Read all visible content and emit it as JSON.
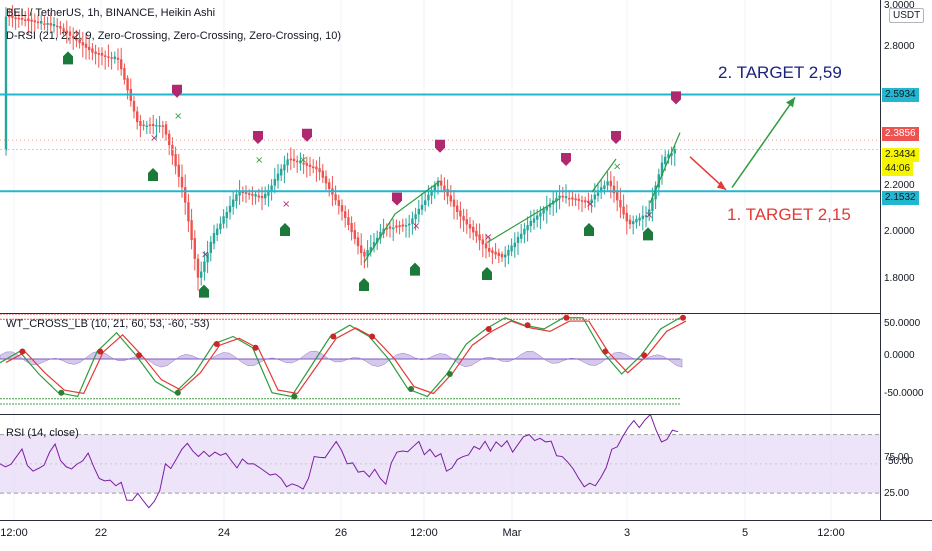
{
  "main": {
    "legend_title": "BEL / TetherUS, 1h, BINANCE, Heikin Ashi",
    "legend_indicator": "D-RSI (21, 2, 2, 9, Zero-Crossing, Zero-Crossing, Zero-Crossing, 10)",
    "target1": "1. TARGET 2,15",
    "target2": "2. TARGET 2,59",
    "y_ticks": [
      "3.0000",
      "2.8000",
      "2.2000",
      "2.0000",
      "1.8000"
    ],
    "price_tags": {
      "level_high": "2.5934",
      "last_high": "2.3856",
      "current": "2.3434",
      "countdown": "44:06",
      "level_low": "2.1532"
    },
    "currency_button": "USDT",
    "colors": {
      "level_line": "#22b7cf",
      "candle_up": "#26a69a",
      "candle_down": "#ef5350",
      "target1": "#e53935",
      "target2": "#1a237e",
      "arrow_green": "#2e9c3e",
      "arrow_red": "#e53935"
    }
  },
  "wt": {
    "legend": "WT_CROSS_LB (10, 21, 60, 53, -60, -53)",
    "y_ticks": [
      "50.0000",
      "0.0000",
      "-50.0000"
    ]
  },
  "rsi": {
    "legend": "RSI (14, close)",
    "y_ticks": [
      "75.00",
      "50.00",
      "25.00"
    ]
  },
  "x_axis": {
    "labels": [
      "12:00",
      "22",
      "24",
      "26",
      "12:00",
      "Mar",
      "3",
      "5",
      "12:00"
    ]
  },
  "chart_data": [
    {
      "type": "candlestick",
      "title": "BEL / TetherUS, 1h, BINANCE, Heikin Ashi",
      "x_labels": [
        "12:00",
        "22",
        "24",
        "26",
        "12:00",
        "Mar",
        "3",
        "5",
        "12:00"
      ],
      "ylim": [
        1.7,
        3.0
      ],
      "close_path": [
        [
          "12:00",
          2.95
        ],
        [
          "22",
          2.75
        ],
        [
          "22",
          2.5
        ],
        [
          "22",
          2.3
        ],
        [
          "24",
          1.75
        ],
        [
          "24",
          2.1
        ],
        [
          "24",
          2.2
        ],
        [
          "26",
          2.1
        ],
        [
          "26",
          1.8
        ],
        [
          "12:00",
          2.05
        ],
        [
          "12:00",
          2.15
        ],
        [
          "Mar",
          1.8
        ],
        [
          "Mar",
          2.05
        ],
        [
          "Mar",
          2.1
        ],
        [
          "3",
          2.05
        ],
        [
          "3",
          2.3
        ],
        [
          "3",
          2.34
        ]
      ],
      "horizontal_levels": [
        2.5934,
        2.1532
      ],
      "annotations": [
        "1. TARGET 2,15",
        "2. TARGET 2,59"
      ]
    },
    {
      "type": "line",
      "title": "WT_CROSS_LB (10, 21, 60, 53, -60, -53)",
      "ylim": [
        -60,
        60
      ],
      "levels": [
        60,
        53,
        -53,
        -60
      ],
      "series": [
        {
          "values": [
            -5,
            10,
            -20,
            -45,
            -50,
            10,
            35,
            5,
            -30,
            -45,
            -20,
            20,
            30,
            15,
            -45,
            -50,
            -10,
            30,
            45,
            30,
            0,
            -40,
            -50,
            -20,
            20,
            40,
            55,
            45,
            40,
            55,
            55,
            10,
            -20,
            5,
            40,
            55
          ]
        }
      ]
    },
    {
      "type": "line",
      "title": "RSI (14, close)",
      "ylim": [
        15,
        80
      ],
      "bands": [
        30,
        70
      ],
      "series": [
        {
          "name": "RSI",
          "values": [
            50,
            55,
            45,
            58,
            48,
            52,
            40,
            35,
            25,
            20,
            50,
            60,
            55,
            58,
            52,
            50,
            45,
            40,
            35,
            55,
            60,
            50,
            45,
            40,
            58,
            62,
            60,
            45,
            55,
            60,
            65,
            58,
            70,
            65,
            55,
            40,
            35,
            60,
            75,
            80,
            65,
            72
          ]
        }
      ]
    }
  ]
}
